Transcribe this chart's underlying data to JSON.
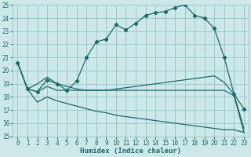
{
  "xlabel": "Humidex (Indice chaleur)",
  "bg_color": "#cde8e8",
  "grid_color": "#9ec8c8",
  "line_color": "#1a6b6b",
  "xlim": [
    -0.5,
    23.5
  ],
  "ylim": [
    15,
    25
  ],
  "xticks": [
    0,
    1,
    2,
    3,
    4,
    5,
    6,
    7,
    8,
    9,
    10,
    11,
    12,
    13,
    14,
    15,
    16,
    17,
    18,
    19,
    20,
    21,
    22,
    23
  ],
  "yticks": [
    15,
    16,
    17,
    18,
    19,
    20,
    21,
    22,
    23,
    24,
    25
  ],
  "line1_x": [
    0,
    1,
    2,
    3,
    4,
    5,
    6,
    7,
    8,
    9,
    10,
    11,
    12,
    13,
    14,
    15,
    16,
    17,
    18,
    19,
    20,
    21,
    22,
    23
  ],
  "line1_y": [
    20.6,
    18.6,
    18.4,
    19.3,
    19.0,
    18.5,
    19.2,
    21.0,
    22.2,
    22.4,
    23.5,
    23.1,
    23.6,
    24.2,
    24.4,
    24.5,
    24.8,
    25.0,
    24.2,
    24.0,
    23.2,
    21.0,
    18.2,
    17.1
  ],
  "line2_x": [
    0,
    1,
    2,
    3,
    4,
    5,
    6,
    7,
    8,
    9,
    10,
    11,
    12,
    13,
    14,
    15,
    16,
    17,
    18,
    19,
    20,
    21,
    22,
    23
  ],
  "line2_y": [
    20.6,
    18.6,
    19.0,
    19.5,
    19.0,
    18.8,
    18.6,
    18.5,
    18.5,
    18.5,
    18.6,
    18.7,
    18.8,
    18.9,
    19.0,
    19.1,
    19.2,
    19.3,
    19.4,
    19.5,
    19.6,
    19.1,
    18.2,
    15.6
  ],
  "line3_x": [
    0,
    1,
    2,
    3,
    4,
    5,
    6,
    7,
    8,
    9,
    10,
    11,
    12,
    13,
    14,
    15,
    16,
    17,
    18,
    19,
    20,
    21,
    22,
    23
  ],
  "line3_y": [
    20.6,
    18.6,
    18.4,
    18.8,
    18.5,
    18.5,
    18.5,
    18.5,
    18.5,
    18.5,
    18.5,
    18.5,
    18.5,
    18.5,
    18.5,
    18.5,
    18.5,
    18.5,
    18.5,
    18.5,
    18.5,
    18.5,
    18.1,
    15.3
  ],
  "line4_x": [
    0,
    1,
    2,
    3,
    4,
    5,
    6,
    7,
    8,
    9,
    10,
    11,
    12,
    13,
    14,
    15,
    16,
    17,
    18,
    19,
    20,
    21,
    22,
    23
  ],
  "line4_y": [
    20.6,
    18.6,
    17.6,
    18.0,
    17.7,
    17.5,
    17.3,
    17.1,
    16.9,
    16.8,
    16.6,
    16.5,
    16.4,
    16.3,
    16.2,
    16.1,
    16.0,
    15.9,
    15.8,
    15.7,
    15.6,
    15.5,
    15.5,
    15.3
  ]
}
